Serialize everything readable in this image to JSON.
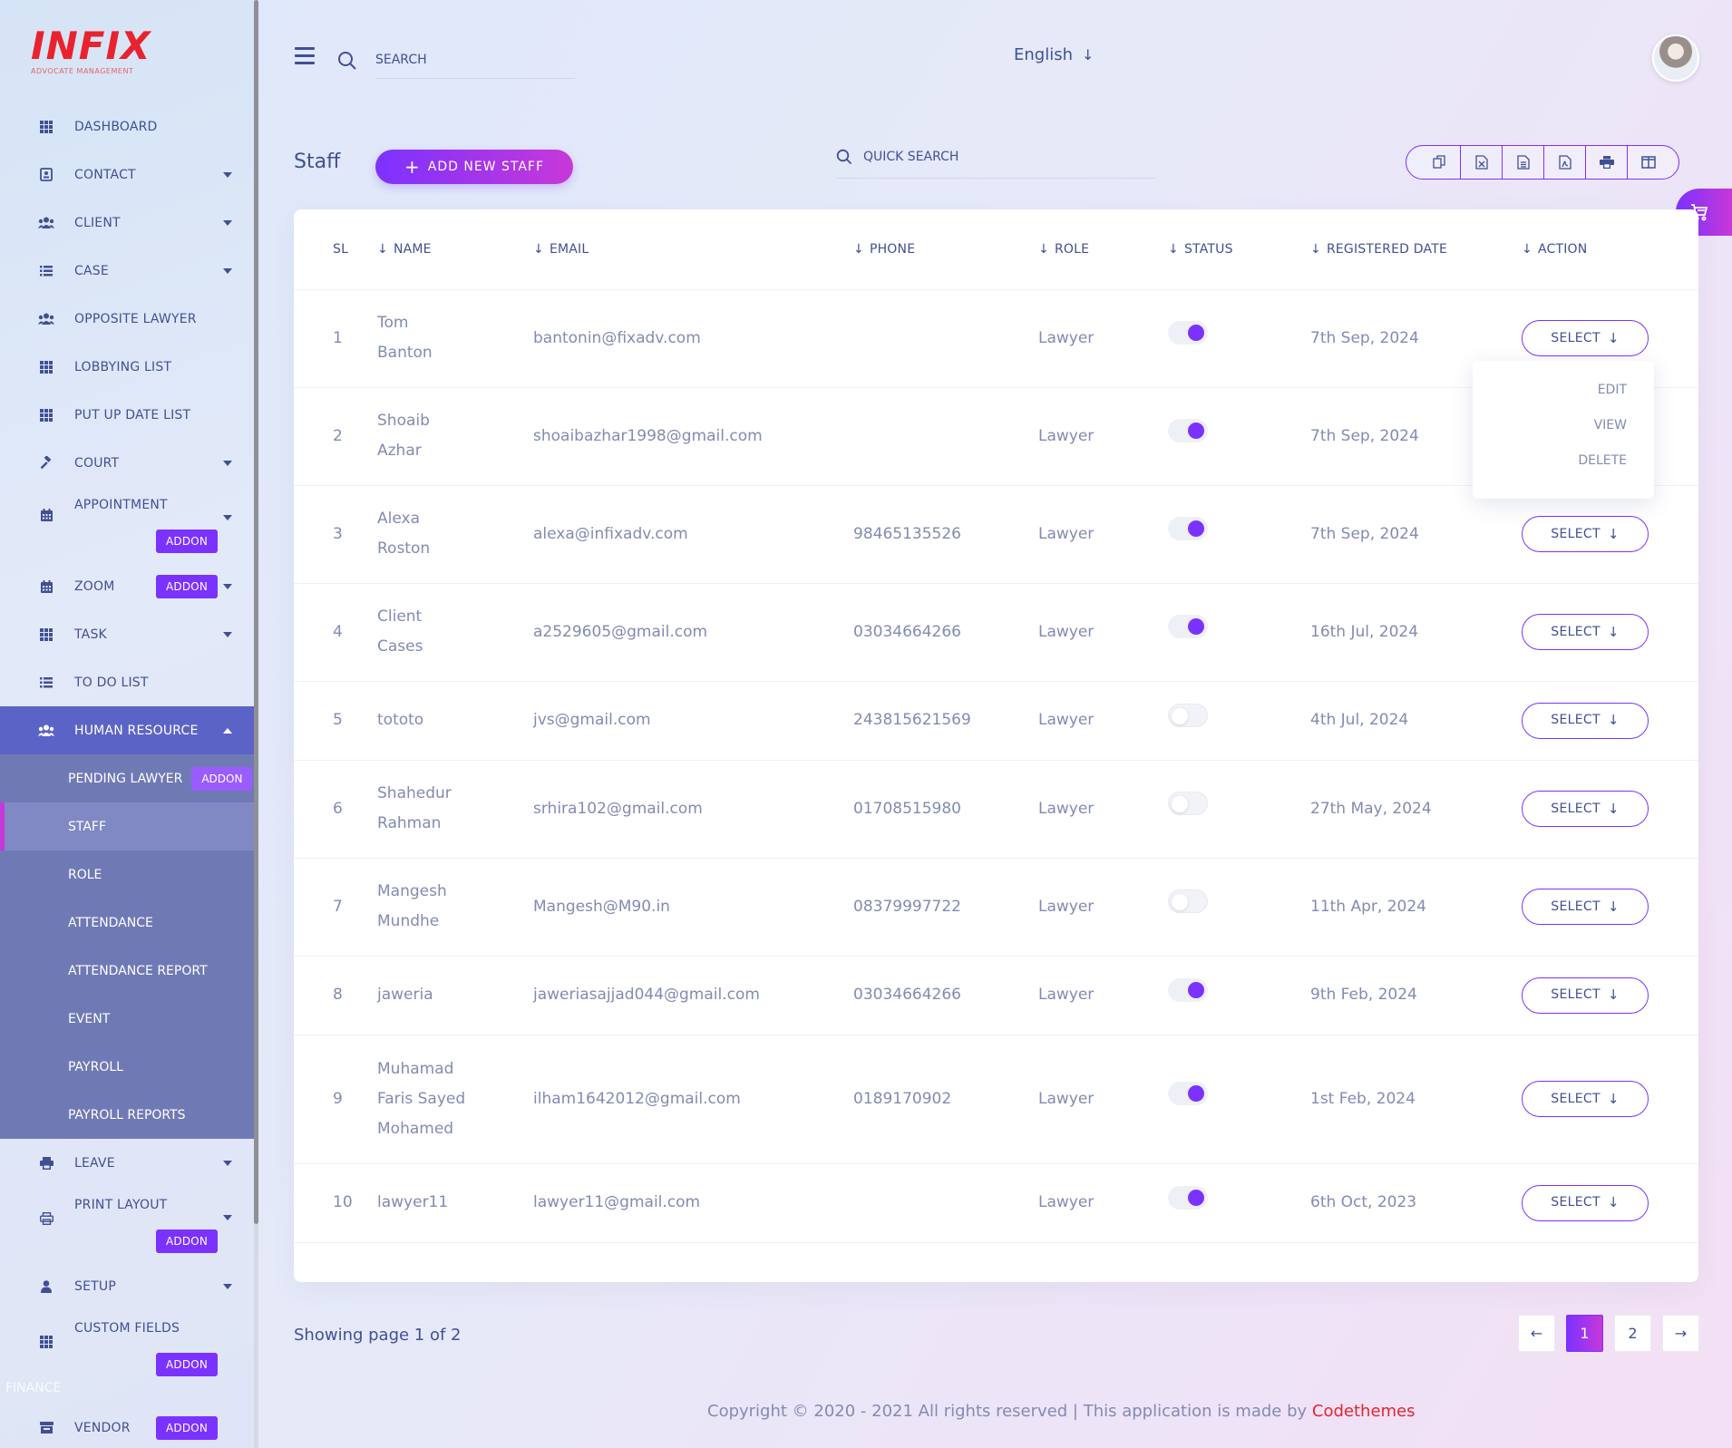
{
  "brand": {
    "name": "INFIX",
    "tagline": "ADVOCATE MANAGEMENT"
  },
  "header": {
    "search_placeholder": "SEARCH",
    "language": "English"
  },
  "sidebar": {
    "items": [
      {
        "label": "DASHBOARD",
        "icon": "grid-icon"
      },
      {
        "label": "CONTACT",
        "icon": "contact-icon"
      },
      {
        "label": "CLIENT",
        "icon": "users-icon"
      },
      {
        "label": "CASE",
        "icon": "list-icon"
      },
      {
        "label": "OPPOSITE LAWYER",
        "icon": "users-icon"
      },
      {
        "label": "LOBBYING LIST",
        "icon": "grid-icon"
      },
      {
        "label": "PUT UP DATE LIST",
        "icon": "grid-icon"
      },
      {
        "label": "COURT",
        "icon": "gavel-icon"
      },
      {
        "label": "APPOINTMENT",
        "icon": "calendar-icon",
        "addon": "ADDON"
      },
      {
        "label": "ZOOM",
        "icon": "calendar-icon",
        "addon": "ADDON"
      },
      {
        "label": "TASK",
        "icon": "grid-icon"
      },
      {
        "label": "TO DO LIST",
        "icon": "list-icon"
      },
      {
        "label": "HUMAN RESOURCE",
        "icon": "users-icon"
      },
      {
        "label": "LEAVE",
        "icon": "print-icon"
      },
      {
        "label": "PRINT LAYOUT",
        "icon": "printer-icon",
        "addon": "ADDON"
      },
      {
        "label": "SETUP",
        "icon": "user-icon"
      },
      {
        "label": "CUSTOM FIELDS",
        "icon": "grid-icon",
        "addon": "ADDON"
      },
      {
        "label": "VENDOR",
        "icon": "store-icon",
        "addon": "ADDON"
      }
    ],
    "submenu": [
      {
        "label": "PENDING LAWYER",
        "addon": "ADDON"
      },
      {
        "label": "STAFF"
      },
      {
        "label": "ROLE"
      },
      {
        "label": "ATTENDANCE"
      },
      {
        "label": "ATTENDANCE REPORT"
      },
      {
        "label": "EVENT"
      },
      {
        "label": "PAYROLL"
      },
      {
        "label": "PAYROLL REPORTS"
      }
    ],
    "section_finance": "FINANCE"
  },
  "page": {
    "title": "Staff",
    "add_button": "ADD NEW STAFF",
    "quick_search_placeholder": "QUICK SEARCH"
  },
  "table": {
    "columns": [
      "SL",
      "NAME",
      "EMAIL",
      "PHONE",
      "ROLE",
      "STATUS",
      "REGISTERED DATE",
      "ACTION"
    ],
    "select_label": "SELECT",
    "rows": [
      {
        "sl": "1",
        "name": [
          "Tom",
          "Banton"
        ],
        "email": "bantonin@fixadv.com",
        "phone": "",
        "role": "Lawyer",
        "status": true,
        "date": "7th Sep, 2024"
      },
      {
        "sl": "2",
        "name": [
          "Shoaib",
          "Azhar"
        ],
        "email": "shoaibazhar1998@gmail.com",
        "phone": "",
        "role": "Lawyer",
        "status": true,
        "date": "7th Sep, 2024"
      },
      {
        "sl": "3",
        "name": [
          "Alexa",
          "Roston"
        ],
        "email": "alexa@infixadv.com",
        "phone": "98465135526",
        "role": "Lawyer",
        "status": true,
        "date": "7th Sep, 2024"
      },
      {
        "sl": "4",
        "name": [
          "Client",
          "Cases"
        ],
        "email": "a2529605@gmail.com",
        "phone": "03034664266",
        "role": "Lawyer",
        "status": true,
        "date": "16th Jul, 2024"
      },
      {
        "sl": "5",
        "name": [
          "tototo"
        ],
        "email": "jvs@gmail.com",
        "phone": "243815621569",
        "role": "Lawyer",
        "status": false,
        "date": "4th Jul, 2024"
      },
      {
        "sl": "6",
        "name": [
          "Shahedur",
          "Rahman"
        ],
        "email": "srhira102@gmail.com",
        "phone": "01708515980",
        "role": "Lawyer",
        "status": false,
        "date": "27th May, 2024"
      },
      {
        "sl": "7",
        "name": [
          "Mangesh",
          "Mundhe"
        ],
        "email": "Mangesh@M90.in",
        "phone": "08379997722",
        "role": "Lawyer",
        "status": false,
        "date": "11th Apr, 2024"
      },
      {
        "sl": "8",
        "name": [
          "jaweria"
        ],
        "email": "jaweriasajjad044@gmail.com",
        "phone": "03034664266",
        "role": "Lawyer",
        "status": true,
        "date": "9th Feb, 2024"
      },
      {
        "sl": "9",
        "name": [
          "Muhamad",
          "Faris Sayed",
          "Mohamed"
        ],
        "email": "ilham1642012@gmail.com",
        "phone": "0189170902",
        "role": "Lawyer",
        "status": true,
        "date": "1st Feb, 2024"
      },
      {
        "sl": "10",
        "name": [
          "lawyer11"
        ],
        "email": "lawyer11@gmail.com",
        "phone": "",
        "role": "Lawyer",
        "status": true,
        "date": "6th Oct, 2023"
      }
    ]
  },
  "dropdown": {
    "items": [
      "EDIT",
      "VIEW",
      "DELETE"
    ]
  },
  "pagination": {
    "info": "Showing page 1 of 2",
    "pages": [
      "1",
      "2"
    ],
    "current": "1"
  },
  "footer": {
    "copyright": "Copyright © 2020 - 2021 All rights reserved | This application is made by ",
    "maker": "Codethemes"
  },
  "colors": {
    "primary": "#7c32ff",
    "secondary": "#c738d8",
    "text": "#415094",
    "muted": "#828bb2",
    "brand": "#e8232e"
  }
}
